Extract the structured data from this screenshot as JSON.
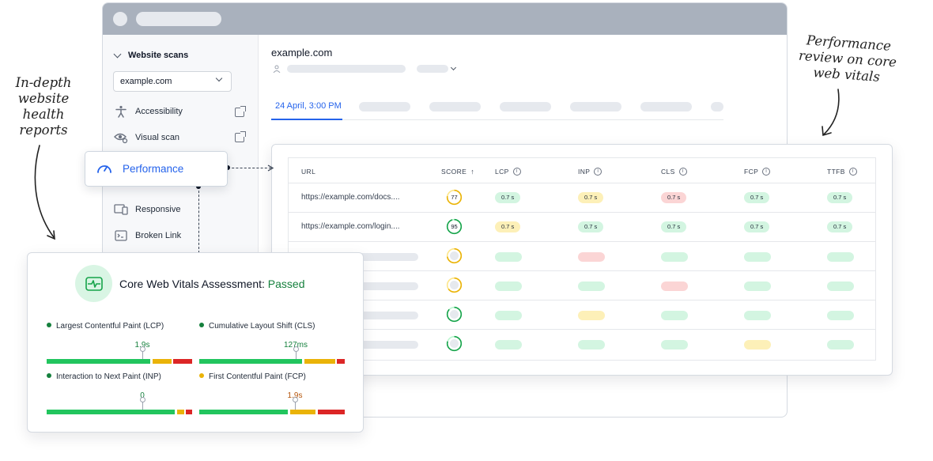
{
  "sidebar": {
    "section_title": "Website scans",
    "site_select": "example.com",
    "items": [
      {
        "label": "Accessibility",
        "icon": "accessibility-icon",
        "external": true
      },
      {
        "label": "Visual scan",
        "icon": "visual-scan-icon",
        "external": true
      },
      {
        "label": "Performance",
        "icon": "gauge-icon",
        "active": true
      },
      {
        "label": "Responsive",
        "icon": "devices-icon"
      },
      {
        "label": "Broken Link",
        "icon": "terminal-icon"
      }
    ]
  },
  "main": {
    "site_title": "example.com",
    "active_tab": "24 April, 3:00 PM"
  },
  "table": {
    "headers": {
      "url": "URL",
      "score": "SCORE",
      "lcp": "LCP",
      "inp": "INP",
      "cls": "CLS",
      "fcp": "FCP",
      "ttfb": "TTFB"
    },
    "rows": [
      {
        "url": "https://example.com/docs....",
        "score": "77",
        "lcp": "0.7 s",
        "inp": "0.7 s",
        "cls": "0.7 s",
        "fcp": "0.7 s",
        "ttfb": "0.7 s"
      },
      {
        "url": "https://example.com/login....",
        "score": "95",
        "lcp": "0.7 s",
        "inp": "0.7 s",
        "cls": "0.7 s",
        "fcp": "0.7 s",
        "ttfb": "0.7 s"
      }
    ],
    "status_colors": {
      "good": "#d3f5e1",
      "warn": "#fdf0b8",
      "poor": "#fbd5d5",
      "placeholder": "#e6e9ee"
    }
  },
  "cwv": {
    "title": "Core Web Vitals Assessment:",
    "status": "Passed",
    "metrics": [
      {
        "label": "Largest Contentful Paint (LCP)",
        "value": "1.9s"
      },
      {
        "label": "Cumulative Layout Shift (CLS)",
        "value": "127ms"
      },
      {
        "label": "Interaction to Next Paint (INP)",
        "value": "0"
      },
      {
        "label": "First Contentful Paint (FCP)",
        "value": "1.9s"
      }
    ],
    "colors": {
      "good": "#22c55e",
      "needs_improvement": "#eab308",
      "poor": "#dc2626"
    }
  },
  "annotations": {
    "left_line1": "In-depth",
    "left_line2": "website",
    "left_line3": "health",
    "left_line4": "reports",
    "right_line1": "Performance",
    "right_line2": "review on core",
    "right_line3": "web vitals"
  }
}
